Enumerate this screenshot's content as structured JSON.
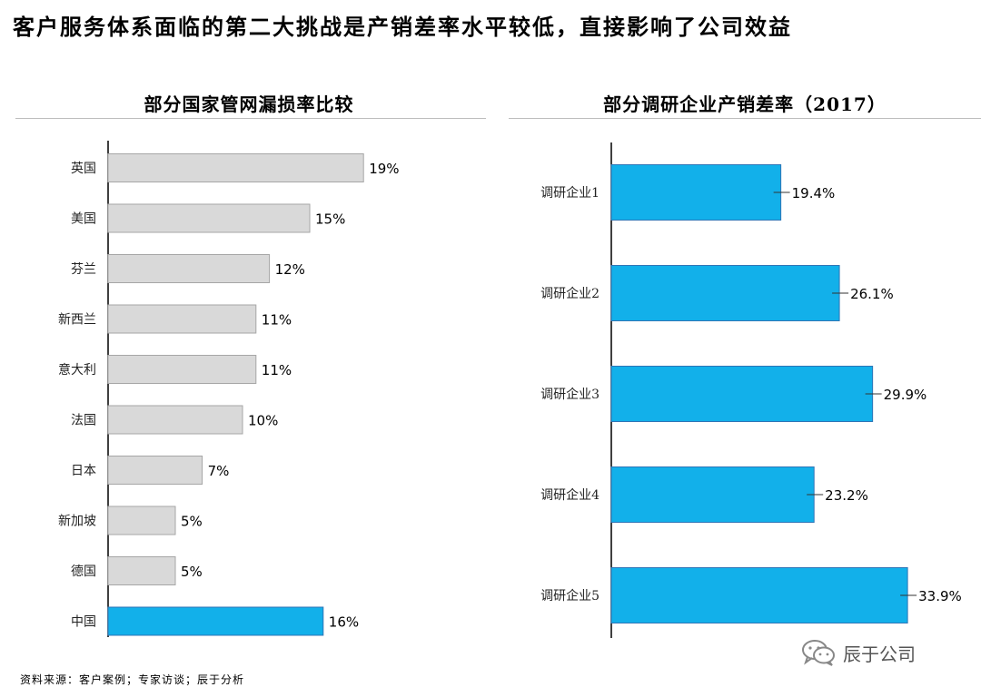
{
  "title": "客户服务体系面临的第二大挑战是产销差率水平较低，直接影响了公司效益",
  "colors": {
    "gray_bar": "#d9d9d9",
    "gray_bar_stroke": "#a6a6a6",
    "blue_bar": "#12b0ea",
    "blue_bar_stroke": "#2e75b6",
    "axis": "#000000"
  },
  "chart_data": [
    {
      "type": "bar",
      "orientation": "horizontal",
      "title": "部分国家管网漏损率比较",
      "categories": [
        "英国",
        "美国",
        "芬兰",
        "新西兰",
        "意大利",
        "法国",
        "日本",
        "新加坡",
        "德国",
        "中国"
      ],
      "values": [
        19,
        15,
        12,
        11,
        11,
        10,
        7,
        5,
        5,
        16
      ],
      "value_labels": [
        "19%",
        "15%",
        "12%",
        "11%",
        "11%",
        "10%",
        "7%",
        "5%",
        "5%",
        "16%"
      ],
      "highlight": "中国",
      "unit": "%",
      "xlim": [
        0,
        20
      ],
      "grid": false,
      "legend": "none"
    },
    {
      "type": "bar",
      "orientation": "horizontal",
      "title": "部分调研企业产销差率（2017）",
      "categories": [
        "调研企业1",
        "调研企业2",
        "调研企业3",
        "调研企业4",
        "调研企业5"
      ],
      "values": [
        19.4,
        26.1,
        29.9,
        23.2,
        33.9
      ],
      "value_labels": [
        "19.4%",
        "26.1%",
        "29.9%",
        "23.2%",
        "33.9%"
      ],
      "unit": "%",
      "xlim": [
        0,
        35
      ],
      "grid": false,
      "legend": "none"
    }
  ],
  "source": "资料来源：客户案例；专家访谈；辰于分析",
  "watermark": {
    "icon": "wechat-icon",
    "text": "辰于公司"
  }
}
